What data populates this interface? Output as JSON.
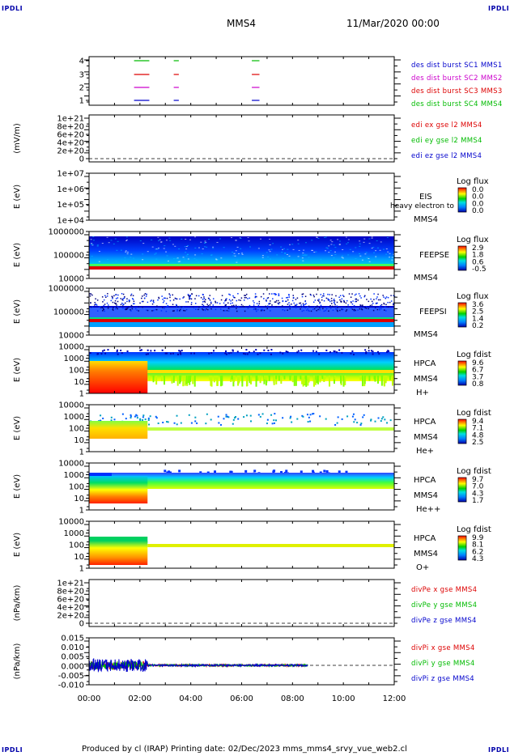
{
  "corners": {
    "label": "IPDLI"
  },
  "header": {
    "spacecraft": "MMS4",
    "datetime": "11/Mar/2020 00:00"
  },
  "footer": {
    "text": "Produced by cl (IRAP)   Printing date: 02/Dec/2023   mms_mms4_srvy_vue_web2.cl"
  },
  "colors": {
    "sc1": "#0000cc",
    "sc2": "#cc00cc",
    "sc3": "#dd0000",
    "sc4": "#00bb00",
    "red": "#dd0000",
    "green": "#00bb00",
    "blue": "#0000cc"
  },
  "x_axis": {
    "ticks": [
      "00:00",
      "02:00",
      "04:00",
      "06:00",
      "08:00",
      "10:00",
      "12:00"
    ],
    "range_hours": [
      0,
      12
    ]
  },
  "panels": [
    {
      "id": "burst",
      "type": "line",
      "ylabel": "",
      "yticks": [
        "4",
        "3",
        "2",
        "1"
      ],
      "legend": [
        {
          "text": "des dist burst SC1 MMS1",
          "color": "#0000cc"
        },
        {
          "text": "des dist burst SC2 MMS2",
          "color": "#cc00cc"
        },
        {
          "text": "des dist burst SC3 MMS3",
          "color": "#dd0000"
        },
        {
          "text": "des dist burst SC4 MMS4",
          "color": "#00bb00"
        }
      ],
      "burst_intervals_hours": [
        [
          1.77,
          2.37
        ],
        [
          3.33,
          3.53
        ],
        [
          6.4,
          6.7
        ]
      ]
    },
    {
      "id": "edi",
      "type": "line",
      "ylabel": "(mV/m)",
      "yticks": [
        "1e+21",
        "8e+20",
        "6e+20",
        "4e+20",
        "2e+20",
        "0"
      ],
      "legend": [
        {
          "text": "edi ex gse l2 MMS4",
          "color": "#dd0000"
        },
        {
          "text": "edi ey gse l2 MMS4",
          "color": "#00bb00"
        },
        {
          "text": "edi ez gse l2 MMS4",
          "color": "#0000cc"
        }
      ]
    },
    {
      "id": "eis",
      "type": "heatmap",
      "ylabel": "E (eV)",
      "yticks": [
        "1e+07",
        "1e+06",
        "1e+05",
        "1e+04"
      ],
      "label": [
        "EIS",
        "MMS4"
      ],
      "overlay": "heavy electron to",
      "cbar_title": "Log flux",
      "cbar_ticks": [
        "0.0",
        "0.0",
        "0.0",
        "0.0"
      ]
    },
    {
      "id": "feepse",
      "type": "heatmap",
      "ylabel": "E (eV)",
      "yticks": [
        "1000000",
        "100000",
        "10000"
      ],
      "label": [
        "FEEPSE",
        "MMS4"
      ],
      "cbar_title": "Log flux",
      "cbar_ticks": [
        "2.9",
        "1.8",
        "0.6",
        "-0.5"
      ]
    },
    {
      "id": "feepsi",
      "type": "heatmap",
      "ylabel": "E (eV)",
      "yticks": [
        "1000000",
        "100000",
        "10000"
      ],
      "label": [
        "FEEPSI",
        "MMS4"
      ],
      "cbar_title": "Log flux",
      "cbar_ticks": [
        "3.6",
        "2.5",
        "1.4",
        "0.2"
      ]
    },
    {
      "id": "hpca_h",
      "type": "heatmap",
      "ylabel": "E (eV)",
      "yticks": [
        "10000",
        "1000",
        "100",
        "10",
        "1"
      ],
      "label": [
        "HPCA",
        "MMS4",
        "H+"
      ],
      "cbar_title": "Log fdist",
      "cbar_ticks": [
        "9.6",
        "6.7",
        "3.7",
        "0.8"
      ]
    },
    {
      "id": "hpca_he",
      "type": "heatmap",
      "ylabel": "E (eV)",
      "yticks": [
        "10000",
        "1000",
        "100",
        "10",
        "1"
      ],
      "label": [
        "HPCA",
        "MMS4",
        "He+"
      ],
      "cbar_title": "Log fdist",
      "cbar_ticks": [
        "9.4",
        "7.1",
        "4.8",
        "2.5"
      ]
    },
    {
      "id": "hpca_hepp",
      "type": "heatmap",
      "ylabel": "E (eV)",
      "yticks": [
        "10000",
        "1000",
        "100",
        "10",
        "1"
      ],
      "label": [
        "HPCA",
        "MMS4",
        "He++"
      ],
      "cbar_title": "Log fdist",
      "cbar_ticks": [
        "9.7",
        "7.0",
        "4.3",
        "1.7"
      ]
    },
    {
      "id": "hpca_o",
      "type": "heatmap",
      "ylabel": "E (eV)",
      "yticks": [
        "10000",
        "1000",
        "100",
        "10",
        "1"
      ],
      "label": [
        "HPCA",
        "MMS4",
        "O+"
      ],
      "cbar_title": "Log fdist",
      "cbar_ticks": [
        "9.9",
        "8.1",
        "6.2",
        "4.3"
      ]
    },
    {
      "id": "divpe",
      "type": "line",
      "ylabel": "(nPa/km)",
      "yticks": [
        "1e+21",
        "8e+20",
        "6e+20",
        "4e+20",
        "2e+20",
        "0"
      ],
      "legend": [
        {
          "text": "divPe x gse MMS4",
          "color": "#dd0000"
        },
        {
          "text": "divPe y gse MMS4",
          "color": "#00bb00"
        },
        {
          "text": "divPe z gse MMS4",
          "color": "#0000cc"
        }
      ]
    },
    {
      "id": "divpi",
      "type": "line",
      "ylabel": "(nPa/km)",
      "yticks": [
        "0.015",
        "0.010",
        "0.005",
        "0.000",
        "-0.005",
        "-0.010"
      ],
      "legend": [
        {
          "text": "divPi x gse MMS4",
          "color": "#dd0000"
        },
        {
          "text": "divPi y gse MMS4",
          "color": "#00bb00"
        },
        {
          "text": "divPi z gse MMS4",
          "color": "#0000cc"
        }
      ]
    }
  ],
  "chart_data": [
    {
      "type": "line",
      "series": [
        {
          "name": "des dist burst SC1 MMS1",
          "values": [
            1
          ]
        },
        {
          "name": "des dist burst SC2 MMS2",
          "values": [
            2
          ]
        },
        {
          "name": "des dist burst SC3 MMS3",
          "values": [
            3
          ]
        },
        {
          "name": "des dist burst SC4 MMS4",
          "values": [
            4
          ]
        }
      ]
    },
    {
      "type": "line",
      "ylabel": "(mV/m)",
      "ylim": [
        0,
        1e+21
      ]
    },
    {
      "type": "heatmap",
      "ylabel": "E (eV)",
      "ylim": [
        10000,
        10000000
      ]
    },
    {
      "type": "heatmap",
      "ylabel": "E (eV)",
      "ylim": [
        10000,
        1000000
      ]
    },
    {
      "type": "heatmap",
      "ylabel": "E (eV)",
      "ylim": [
        10000,
        1000000
      ]
    },
    {
      "type": "heatmap",
      "ylabel": "E (eV)",
      "ylim": [
        1,
        10000
      ]
    },
    {
      "type": "heatmap",
      "ylabel": "E (eV)",
      "ylim": [
        1,
        10000
      ]
    },
    {
      "type": "heatmap",
      "ylabel": "E (eV)",
      "ylim": [
        1,
        10000
      ]
    },
    {
      "type": "heatmap",
      "ylabel": "E (eV)",
      "ylim": [
        1,
        10000
      ]
    },
    {
      "type": "line",
      "ylabel": "(nPa/km)",
      "ylim": [
        0,
        1e+21
      ]
    },
    {
      "type": "line",
      "ylabel": "(nPa/km)",
      "ylim": [
        -0.01,
        0.015
      ]
    }
  ]
}
